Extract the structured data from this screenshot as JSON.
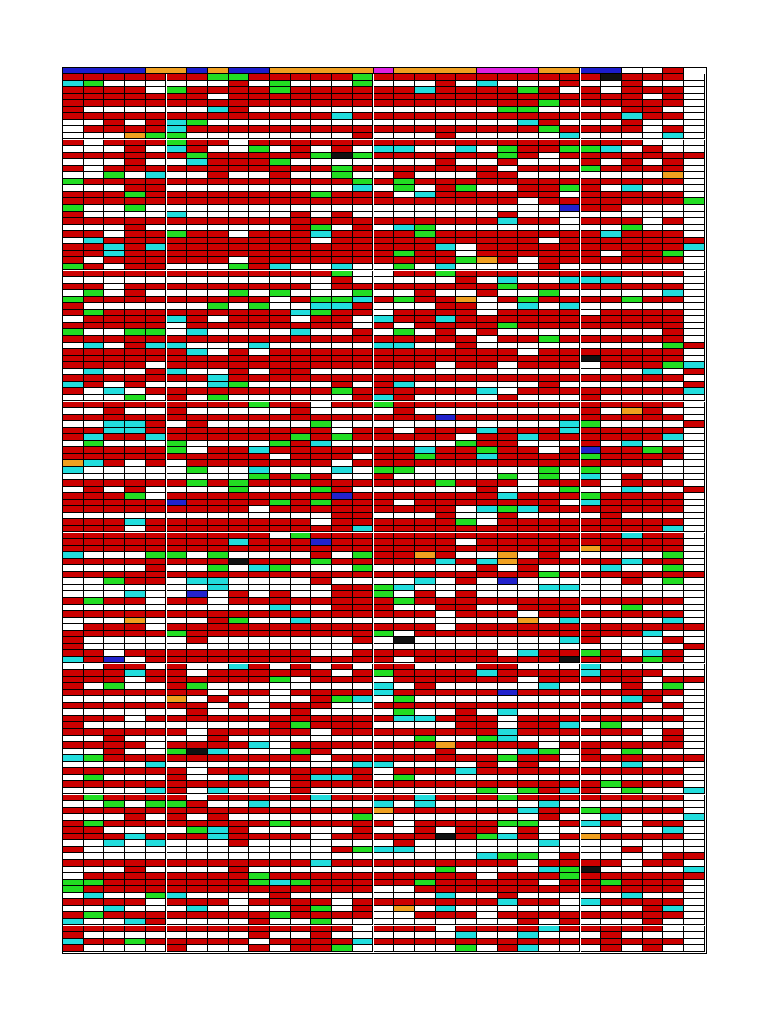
{
  "document": {
    "title": "",
    "header_groups": [
      {
        "span": 4,
        "color": "#1c1ccc"
      },
      {
        "span": 2,
        "color": "#f0a020"
      },
      {
        "span": 1,
        "color": "#1c1ccc"
      },
      {
        "span": 1,
        "color": "#f0a020"
      },
      {
        "span": 2,
        "color": "#1c1ccc"
      },
      {
        "span": 5,
        "color": "#f0a020"
      },
      {
        "span": 1,
        "color": "#e020e0"
      },
      {
        "span": 4,
        "color": "#f0a020"
      },
      {
        "span": 3,
        "color": "#e020e0"
      },
      {
        "span": 2,
        "color": "#f0a020"
      },
      {
        "span": 2,
        "color": "#1c1ccc"
      },
      {
        "span": 1,
        "color": "#ffffff"
      },
      {
        "span": 1,
        "color": "#ffffff"
      },
      {
        "span": 1,
        "color": "#cc0000"
      }
    ],
    "palette": {
      "red": "#cc0000",
      "white": "#ffffff",
      "green": "#22dd22",
      "cyan": "#22dddd",
      "black": "#111111",
      "blue": "#2222cc",
      "orange": "#f0a020"
    }
  }
}
